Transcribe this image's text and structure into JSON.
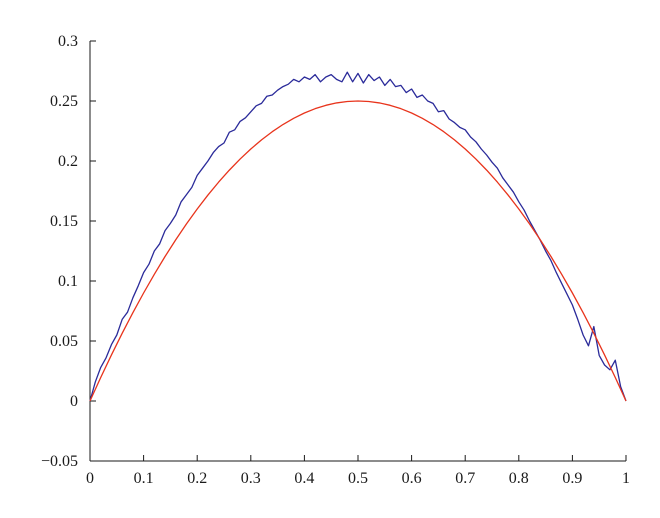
{
  "chart_data": {
    "type": "line",
    "title": "",
    "xlabel": "",
    "ylabel": "",
    "xlim": [
      0,
      1
    ],
    "ylim": [
      -0.05,
      0.3
    ],
    "grid": false,
    "legend": "none",
    "x_ticks": [
      0,
      0.1,
      0.2,
      0.3,
      0.4,
      0.5,
      0.6,
      0.7,
      0.8,
      0.9,
      1
    ],
    "x_tick_labels": [
      "0",
      "0.1",
      "0.2",
      "0.3",
      "0.4",
      "0.5",
      "0.6",
      "0.7",
      "0.8",
      "0.9",
      "1"
    ],
    "y_ticks": [
      -0.05,
      0,
      0.05,
      0.1,
      0.15,
      0.2,
      0.25,
      0.3
    ],
    "y_tick_labels": [
      "−0.05",
      "0",
      "0.05",
      "0.1",
      "0.15",
      "0.2",
      "0.25",
      "0.3"
    ],
    "series": [
      {
        "color": "#2b2b9a",
        "x": [
          0,
          0.01,
          0.02,
          0.03,
          0.04,
          0.05,
          0.06,
          0.07,
          0.08,
          0.09,
          0.1,
          0.11,
          0.12,
          0.13,
          0.14,
          0.15,
          0.16,
          0.17,
          0.18,
          0.19,
          0.2,
          0.21,
          0.22,
          0.23,
          0.24,
          0.25,
          0.26,
          0.27,
          0.28,
          0.29,
          0.3,
          0.31,
          0.32,
          0.33,
          0.34,
          0.35,
          0.36,
          0.37,
          0.38,
          0.39,
          0.4,
          0.41,
          0.42,
          0.43,
          0.44,
          0.45,
          0.46,
          0.47,
          0.48,
          0.49,
          0.5,
          0.51,
          0.52,
          0.53,
          0.54,
          0.55,
          0.56,
          0.57,
          0.58,
          0.59,
          0.6,
          0.61,
          0.62,
          0.63,
          0.64,
          0.65,
          0.66,
          0.67,
          0.68,
          0.69,
          0.7,
          0.71,
          0.72,
          0.73,
          0.74,
          0.75,
          0.76,
          0.77,
          0.78,
          0.79,
          0.8,
          0.81,
          0.82,
          0.83,
          0.84,
          0.85,
          0.86,
          0.87,
          0.88,
          0.89,
          0.9,
          0.91,
          0.92,
          0.93,
          0.94,
          0.95,
          0.96,
          0.97,
          0.98,
          0.99,
          1
        ],
        "values": [
          0,
          0.016,
          0.028,
          0.036,
          0.047,
          0.055,
          0.068,
          0.074,
          0.086,
          0.096,
          0.107,
          0.114,
          0.125,
          0.131,
          0.142,
          0.148,
          0.155,
          0.166,
          0.172,
          0.178,
          0.188,
          0.194,
          0.2,
          0.207,
          0.212,
          0.215,
          0.224,
          0.226,
          0.233,
          0.236,
          0.241,
          0.246,
          0.248,
          0.254,
          0.255,
          0.259,
          0.262,
          0.264,
          0.268,
          0.266,
          0.27,
          0.268,
          0.272,
          0.266,
          0.27,
          0.272,
          0.268,
          0.266,
          0.274,
          0.266,
          0.273,
          0.265,
          0.272,
          0.267,
          0.27,
          0.263,
          0.268,
          0.262,
          0.263,
          0.257,
          0.26,
          0.253,
          0.255,
          0.25,
          0.248,
          0.241,
          0.242,
          0.235,
          0.232,
          0.228,
          0.226,
          0.22,
          0.216,
          0.21,
          0.205,
          0.199,
          0.194,
          0.186,
          0.18,
          0.174,
          0.166,
          0.159,
          0.15,
          0.142,
          0.134,
          0.125,
          0.117,
          0.107,
          0.098,
          0.089,
          0.08,
          0.068,
          0.055,
          0.046,
          0.062,
          0.038,
          0.03,
          0.026,
          0.034,
          0.012,
          0
        ]
      },
      {
        "color": "#e8341c",
        "x": [
          0,
          0.02,
          0.04,
          0.06,
          0.08,
          0.1,
          0.12,
          0.14,
          0.16,
          0.18,
          0.2,
          0.22,
          0.24,
          0.26,
          0.28,
          0.3,
          0.32,
          0.34,
          0.36,
          0.38,
          0.4,
          0.42,
          0.44,
          0.46,
          0.48,
          0.5,
          0.52,
          0.54,
          0.56,
          0.58,
          0.6,
          0.62,
          0.64,
          0.66,
          0.68,
          0.7,
          0.72,
          0.74,
          0.76,
          0.78,
          0.8,
          0.82,
          0.84,
          0.86,
          0.88,
          0.9,
          0.92,
          0.94,
          0.96,
          0.98,
          1
        ],
        "values": [
          0,
          0.0196,
          0.0384,
          0.0564,
          0.0736,
          0.09,
          0.1056,
          0.1204,
          0.1344,
          0.1476,
          0.16,
          0.1716,
          0.1824,
          0.1924,
          0.2016,
          0.21,
          0.2176,
          0.2244,
          0.2304,
          0.2356,
          0.24,
          0.2436,
          0.2464,
          0.2484,
          0.2496,
          0.25,
          0.2496,
          0.2484,
          0.2464,
          0.2436,
          0.24,
          0.2356,
          0.2304,
          0.2244,
          0.2176,
          0.21,
          0.2016,
          0.1924,
          0.1824,
          0.1716,
          0.16,
          0.1476,
          0.1344,
          0.1204,
          0.1056,
          0.09,
          0.0736,
          0.0564,
          0.0384,
          0.0196,
          0
        ]
      }
    ]
  }
}
